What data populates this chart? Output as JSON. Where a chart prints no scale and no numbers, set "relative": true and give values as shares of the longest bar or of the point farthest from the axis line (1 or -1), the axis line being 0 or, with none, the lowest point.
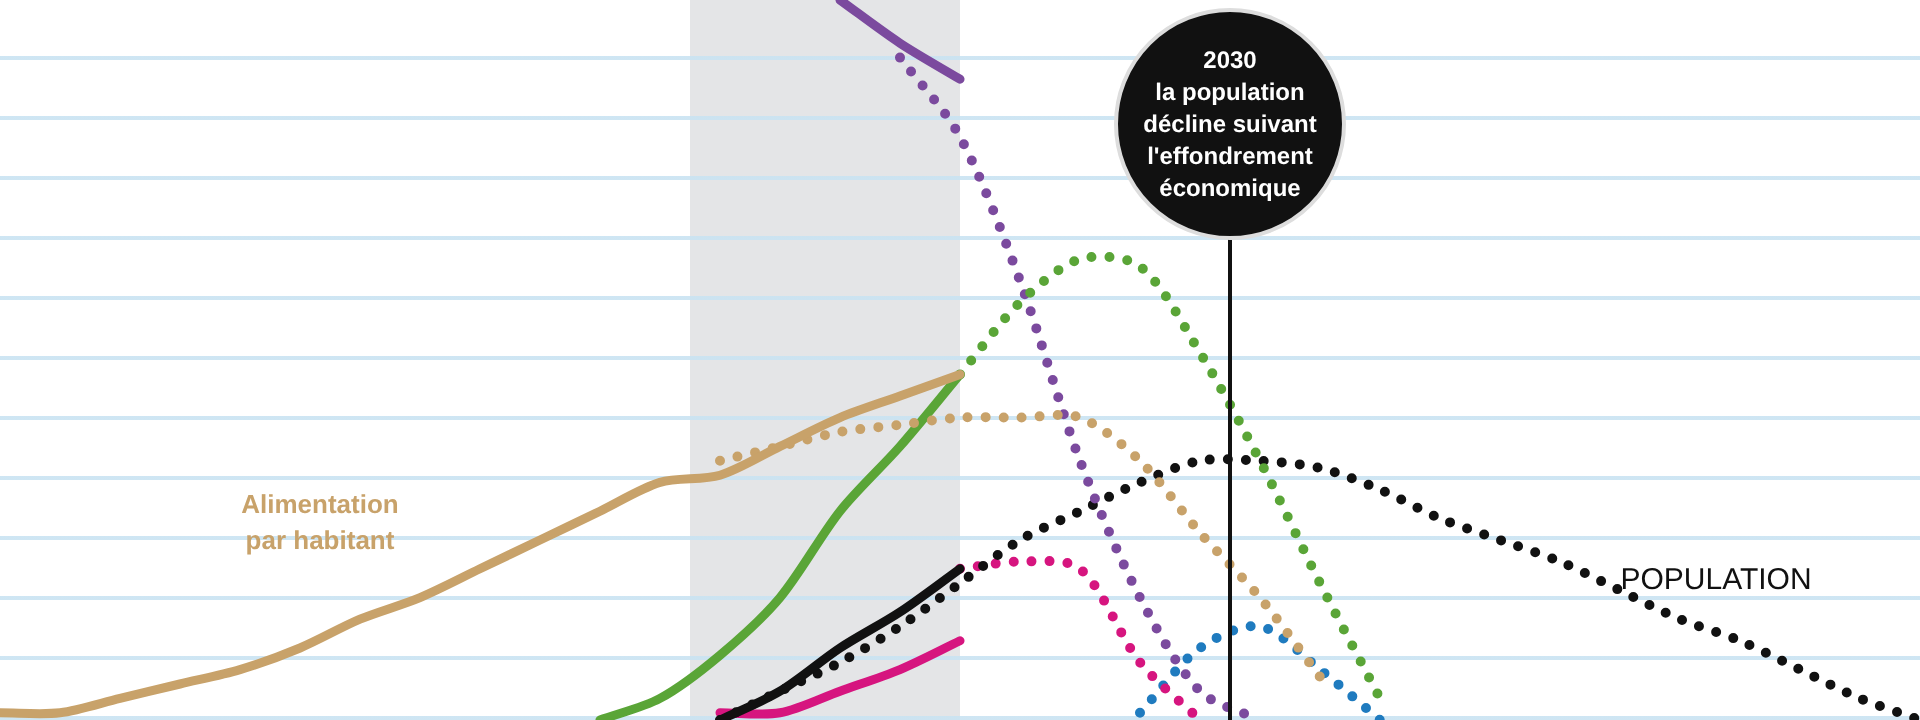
{
  "chart_data": {
    "type": "line",
    "relative": true,
    "categories": [
      null,
      null,
      null,
      null,
      null,
      null,
      null,
      null,
      null,
      null,
      null,
      null,
      null,
      null,
      null,
      null,
      null,
      null,
      null,
      null,
      null,
      null,
      null,
      null,
      null,
      null,
      null,
      null,
      null,
      null,
      null,
      null,
      null
    ],
    "series": [
      {
        "name": "Alimentation par habitant",
        "color": "#c8a26a",
        "line_style": "solid",
        "values": [
          0.01,
          0.01,
          0.03,
          0.05,
          0.07,
          0.1,
          0.14,
          0.17,
          0.21,
          0.25,
          0.29,
          0.33,
          0.34,
          0.38,
          0.42,
          0.45,
          0.48,
          null,
          null,
          null,
          null,
          null,
          null,
          null,
          null,
          null,
          null,
          null,
          null,
          null,
          null,
          null,
          null
        ]
      },
      {
        "color": "#c8a26a",
        "line_style": "dotted",
        "values": [
          null,
          null,
          null,
          null,
          null,
          null,
          null,
          null,
          null,
          null,
          null,
          null,
          0.36,
          0.38,
          0.4,
          0.41,
          0.42,
          0.42,
          0.42,
          0.36,
          0.26,
          0.17,
          0.06,
          null,
          null,
          null,
          null,
          null,
          null,
          null,
          null,
          null,
          null
        ]
      },
      {
        "color": "#5aa537",
        "line_style": "solid",
        "values": [
          null,
          null,
          null,
          null,
          null,
          null,
          null,
          null,
          null,
          null,
          0,
          0.03,
          0.09,
          0.17,
          0.29,
          0.38,
          0.48,
          null,
          null,
          null,
          null,
          null,
          null,
          null,
          null,
          null,
          null,
          null,
          null,
          null,
          null,
          null,
          null
        ]
      },
      {
        "color": "#5aa537",
        "line_style": "dotted",
        "values": [
          null,
          null,
          null,
          null,
          null,
          null,
          null,
          null,
          null,
          null,
          null,
          null,
          null,
          null,
          null,
          null,
          0.48,
          0.58,
          0.64,
          0.63,
          0.51,
          0.36,
          0.19,
          0.03,
          null,
          null,
          null,
          null,
          null,
          null,
          null,
          null,
          null
        ]
      },
      {
        "color": "#7b4a9e",
        "line_style": "solid",
        "values": [
          null,
          null,
          null,
          null,
          null,
          null,
          null,
          null,
          null,
          null,
          null,
          null,
          null,
          null,
          1,
          0.94,
          0.89,
          null,
          null,
          null,
          null,
          null,
          null,
          null,
          null,
          null,
          null,
          null,
          null,
          null,
          null,
          null,
          null
        ]
      },
      {
        "color": "#7b4a9e",
        "line_style": "dotted",
        "values": [
          null,
          null,
          null,
          null,
          null,
          null,
          null,
          null,
          null,
          null,
          null,
          null,
          null,
          null,
          null,
          0.92,
          0.81,
          0.61,
          0.36,
          0.17,
          0.04,
          0,
          null,
          null,
          null,
          null,
          null,
          null,
          null,
          null,
          null,
          null,
          null
        ]
      },
      {
        "color": "#111111",
        "line_style": "solid",
        "values": [
          null,
          null,
          null,
          null,
          null,
          null,
          null,
          null,
          null,
          null,
          null,
          null,
          0,
          0.04,
          0.1,
          0.15,
          0.21,
          null,
          null,
          null,
          null,
          null,
          null,
          null,
          null,
          null,
          null,
          null,
          null,
          null,
          null,
          null,
          null
        ]
      },
      {
        "name": "POPULATION",
        "color": "#111111",
        "line_style": "dotted",
        "values": [
          null,
          null,
          null,
          null,
          null,
          null,
          null,
          null,
          null,
          null,
          null,
          null,
          0,
          0.04,
          0.08,
          0.13,
          0.19,
          0.25,
          0.29,
          0.33,
          0.36,
          0.36,
          0.35,
          0.32,
          0.28,
          0.25,
          0.22,
          0.18,
          0.14,
          0.11,
          0.07,
          0.03,
          0
        ]
      },
      {
        "color": "#d6157f",
        "line_style": "solid",
        "values": [
          null,
          null,
          null,
          null,
          null,
          null,
          null,
          null,
          null,
          null,
          null,
          null,
          0.01,
          0.01,
          0.04,
          0.07,
          0.11,
          null,
          null,
          null,
          null,
          null,
          null,
          null,
          null,
          null,
          null,
          null,
          null,
          null,
          null,
          null,
          null
        ]
      },
      {
        "color": "#d6157f",
        "line_style": "dotted",
        "values": [
          null,
          null,
          null,
          null,
          null,
          null,
          null,
          null,
          null,
          null,
          null,
          null,
          null,
          null,
          null,
          null,
          0.21,
          0.22,
          0.21,
          0.08,
          0,
          null,
          null,
          null,
          null,
          null,
          null,
          null,
          null,
          null,
          null,
          null,
          null
        ]
      },
      {
        "color": "#1f7bbf",
        "line_style": "dotted",
        "values": [
          null,
          null,
          null,
          null,
          null,
          null,
          null,
          null,
          null,
          null,
          null,
          null,
          null,
          null,
          null,
          null,
          null,
          null,
          null,
          0.01,
          0.1,
          0.13,
          0.07,
          0,
          null,
          null,
          null,
          null,
          null,
          null,
          null,
          null,
          null
        ]
      }
    ],
    "annotations": [
      "2030\nla population\ndécline suivant\nl'effondrement\néconomique"
    ]
  }
}
